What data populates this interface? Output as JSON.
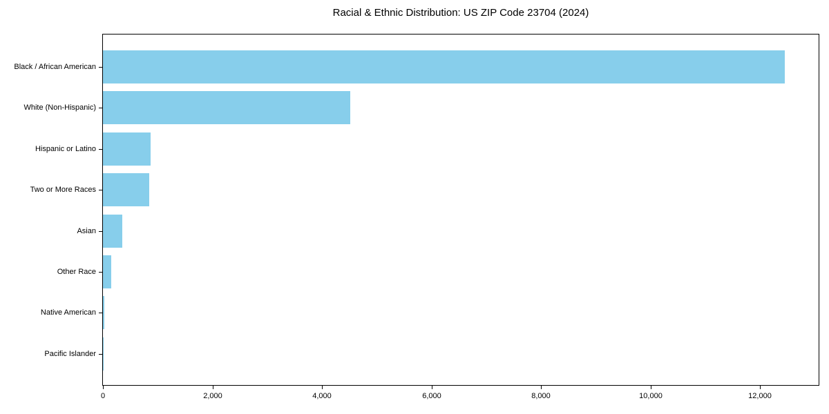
{
  "figure": {
    "background": "#ffffff"
  },
  "chart_data": {
    "type": "bar",
    "orientation": "horizontal",
    "title": "Racial & Ethnic Distribution: US ZIP Code 23704 (2024)",
    "categories": [
      "Black / African American",
      "White (Non-Hispanic)",
      "Hispanic or Latino",
      "Two or More Races",
      "Asian",
      "Other Race",
      "Native American",
      "Pacific Islander"
    ],
    "values": [
      12450,
      4520,
      870,
      850,
      350,
      155,
      20,
      5
    ],
    "xlabel": "",
    "ylabel": "",
    "xlim": [
      0,
      13070
    ],
    "x_ticks": [
      0,
      2000,
      4000,
      6000,
      8000,
      10000,
      12000
    ],
    "x_tick_labels": [
      "0",
      "2,000",
      "4,000",
      "6,000",
      "8,000",
      "10,000",
      "12,000"
    ],
    "bar_color": "#87CEEB",
    "axis_color": "#000000",
    "text_color": "#000000",
    "grid": false,
    "legend": null,
    "sort_order": "descending"
  }
}
